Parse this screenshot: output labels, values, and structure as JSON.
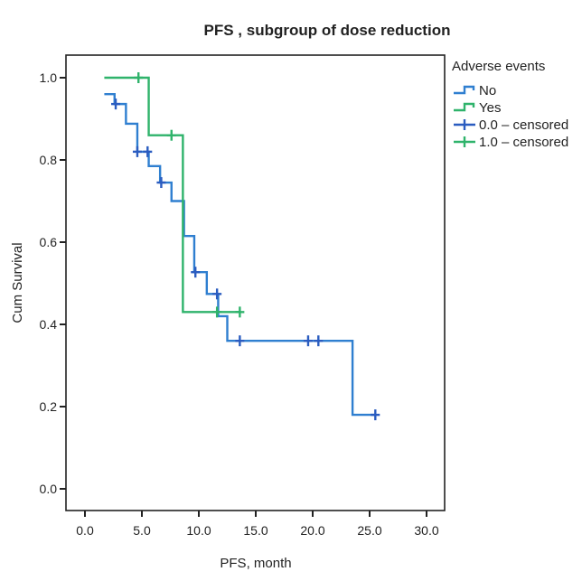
{
  "chart_data": {
    "type": "line",
    "subtype": "kaplan-meier-step",
    "title": "PFS , subgroup of dose reduction",
    "xlabel": "PFS, month",
    "ylabel": "Cum Survival",
    "xlim": [
      -1.5,
      31.5
    ],
    "ylim": [
      0,
      1.05
    ],
    "xticks": [
      0,
      5,
      10,
      15,
      20,
      25,
      30
    ],
    "xtick_labels": [
      "0.0",
      "5.0",
      "10.0",
      "15.0",
      "20.0",
      "25.0",
      "30.0"
    ],
    "yticks": [
      0,
      0.2,
      0.4,
      0.6,
      0.8,
      1.0
    ],
    "ytick_labels": [
      "0.0",
      "0.2",
      "0.4",
      "0.6",
      "0.8",
      "1.0"
    ],
    "grid": false,
    "legend": {
      "title": "Adverse events",
      "position": "right-top",
      "entries": [
        {
          "label": "No",
          "kind": "step-line",
          "color": "#2f7fd0"
        },
        {
          "label": "Yes",
          "kind": "step-line",
          "color": "#2fb36b"
        },
        {
          "label": "0.0 – censored",
          "kind": "censor-mark",
          "color": "#2a5cc0"
        },
        {
          "label": "1.0 – censored",
          "kind": "censor-mark",
          "color": "#2fb36b"
        }
      ]
    },
    "series": [
      {
        "name": "No",
        "color": "#2f7fd0",
        "censor_color": "#2a5cc0",
        "steps": [
          {
            "t": 1.7,
            "s": 0.96
          },
          {
            "t": 2.6,
            "s": 0.936
          },
          {
            "t": 3.6,
            "s": 0.888
          },
          {
            "t": 4.6,
            "s": 0.82
          },
          {
            "t": 5.6,
            "s": 0.785
          },
          {
            "t": 6.6,
            "s": 0.745
          },
          {
            "t": 7.6,
            "s": 0.7
          },
          {
            "t": 8.7,
            "s": 0.615
          },
          {
            "t": 9.6,
            "s": 0.527
          },
          {
            "t": 10.7,
            "s": 0.474
          },
          {
            "t": 11.7,
            "s": 0.42
          },
          {
            "t": 12.5,
            "s": 0.36
          },
          {
            "t": 23.5,
            "s": 0.18
          }
        ],
        "end_t": 25.5,
        "censored": [
          2.7,
          4.6,
          5.5,
          6.7,
          9.7,
          11.6,
          13.6,
          19.6,
          20.5,
          25.5
        ]
      },
      {
        "name": "Yes",
        "color": "#2fb36b",
        "censor_color": "#2fb36b",
        "steps": [
          {
            "t": 1.7,
            "s": 1.0
          },
          {
            "t": 5.6,
            "s": 0.86
          },
          {
            "t": 8.6,
            "s": 0.43
          }
        ],
        "end_t": 13.6,
        "censored": [
          4.7,
          7.6,
          11.6,
          13.6
        ]
      }
    ]
  }
}
